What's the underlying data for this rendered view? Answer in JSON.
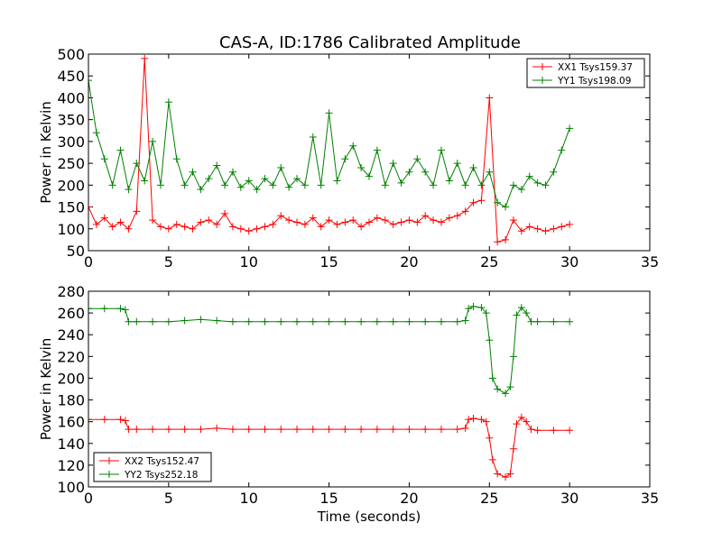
{
  "figure_title": "CAS-A, ID:1786 Calibrated Amplitude",
  "chart_data": [
    {
      "type": "line",
      "title": "CAS-A, ID:1786 Calibrated Amplitude",
      "xlabel": "",
      "ylabel": "Power in Kelvin",
      "xlim": [
        0,
        35
      ],
      "ylim": [
        50,
        500
      ],
      "xticks": [
        0,
        5,
        10,
        15,
        20,
        25,
        30,
        35
      ],
      "yticks": [
        50,
        100,
        150,
        200,
        250,
        300,
        350,
        400,
        450,
        500
      ],
      "legend_position": "top-right",
      "series": [
        {
          "name": "XX1 Tsys159.37",
          "color": "#ff0000",
          "x": [
            0,
            0.5,
            1,
            1.5,
            2,
            2.5,
            3,
            3.5,
            4,
            4.5,
            5,
            5.5,
            6,
            6.5,
            7,
            7.5,
            8,
            8.5,
            9,
            9.5,
            10,
            10.5,
            11,
            11.5,
            12,
            12.5,
            13,
            13.5,
            14,
            14.5,
            15,
            15.5,
            16,
            16.5,
            17,
            17.5,
            18,
            18.5,
            19,
            19.5,
            20,
            20.5,
            21,
            21.5,
            22,
            22.5,
            23,
            23.5,
            24,
            24.5,
            25,
            25.5,
            26,
            26.5,
            27,
            27.5,
            28,
            28.5,
            29,
            29.5,
            30
          ],
          "values": [
            150,
            110,
            125,
            105,
            115,
            100,
            140,
            490,
            120,
            105,
            100,
            110,
            105,
            100,
            115,
            120,
            110,
            135,
            105,
            100,
            95,
            100,
            105,
            110,
            130,
            120,
            115,
            110,
            125,
            105,
            120,
            110,
            115,
            120,
            105,
            115,
            125,
            120,
            110,
            115,
            120,
            115,
            130,
            120,
            115,
            125,
            130,
            140,
            160,
            165,
            400,
            70,
            75,
            120,
            95,
            105,
            100,
            95,
            100,
            105,
            110
          ]
        },
        {
          "name": "YY1 Tsys198.09",
          "color": "#008000",
          "x": [
            0,
            0.5,
            1,
            1.5,
            2,
            2.5,
            3,
            3.5,
            4,
            4.5,
            5,
            5.5,
            6,
            6.5,
            7,
            7.5,
            8,
            8.5,
            9,
            9.5,
            10,
            10.5,
            11,
            11.5,
            12,
            12.5,
            13,
            13.5,
            14,
            14.5,
            15,
            15.5,
            16,
            16.5,
            17,
            17.5,
            18,
            18.5,
            19,
            19.5,
            20,
            20.5,
            21,
            21.5,
            22,
            22.5,
            23,
            23.5,
            24,
            24.5,
            25,
            25.5,
            26,
            26.5,
            27,
            27.5,
            28,
            28.5,
            29,
            29.5,
            30
          ],
          "values": [
            440,
            320,
            260,
            200,
            280,
            190,
            250,
            210,
            300,
            200,
            390,
            260,
            200,
            230,
            190,
            215,
            245,
            200,
            230,
            195,
            210,
            190,
            215,
            200,
            240,
            195,
            215,
            200,
            310,
            200,
            365,
            210,
            260,
            290,
            240,
            220,
            280,
            200,
            250,
            205,
            230,
            260,
            230,
            200,
            280,
            210,
            250,
            200,
            240,
            200,
            230,
            160,
            150,
            200,
            190,
            220,
            205,
            200,
            230,
            280,
            330
          ]
        }
      ]
    },
    {
      "type": "line",
      "title": "",
      "xlabel": "Time (seconds)",
      "ylabel": "Power in Kelvin",
      "xlim": [
        0,
        35
      ],
      "ylim": [
        100,
        280
      ],
      "xticks": [
        0,
        5,
        10,
        15,
        20,
        25,
        30,
        35
      ],
      "yticks": [
        100,
        120,
        140,
        160,
        180,
        200,
        220,
        240,
        260,
        280
      ],
      "legend_position": "bottom-left",
      "series": [
        {
          "name": "XX2 Tsys152.47",
          "color": "#ff0000",
          "x": [
            0,
            1,
            2,
            2.3,
            2.5,
            3,
            4,
            5,
            6,
            7,
            8,
            9,
            10,
            11,
            12,
            13,
            14,
            15,
            16,
            17,
            18,
            19,
            20,
            21,
            22,
            23,
            23.5,
            23.7,
            24,
            24.5,
            24.8,
            25,
            25.2,
            25.5,
            26,
            26.3,
            26.5,
            26.7,
            27,
            27.3,
            27.6,
            28,
            29,
            30
          ],
          "values": [
            162,
            162,
            162,
            161,
            153,
            153,
            153,
            153,
            153,
            153,
            154,
            153,
            153,
            153,
            153,
            153,
            153,
            153,
            153,
            153,
            153,
            153,
            153,
            153,
            153,
            153,
            154,
            162,
            163,
            162,
            160,
            145,
            125,
            112,
            109,
            112,
            135,
            158,
            164,
            160,
            153,
            152,
            152,
            152
          ]
        },
        {
          "name": "YY2 Tsys252.18",
          "color": "#008000",
          "x": [
            0,
            1,
            2,
            2.3,
            2.5,
            3,
            4,
            5,
            6,
            7,
            8,
            9,
            10,
            11,
            12,
            13,
            14,
            15,
            16,
            17,
            18,
            19,
            20,
            21,
            22,
            23,
            23.5,
            23.7,
            24,
            24.5,
            24.8,
            25,
            25.2,
            25.5,
            26,
            26.3,
            26.5,
            26.7,
            27,
            27.3,
            27.6,
            28,
            29,
            30
          ],
          "values": [
            264,
            264,
            264,
            263,
            252,
            252,
            252,
            252,
            253,
            254,
            253,
            252,
            252,
            252,
            252,
            252,
            252,
            252,
            252,
            252,
            252,
            252,
            252,
            252,
            252,
            252,
            253,
            264,
            266,
            265,
            260,
            235,
            200,
            190,
            186,
            192,
            220,
            258,
            265,
            260,
            252,
            252,
            252,
            252
          ]
        }
      ]
    }
  ]
}
